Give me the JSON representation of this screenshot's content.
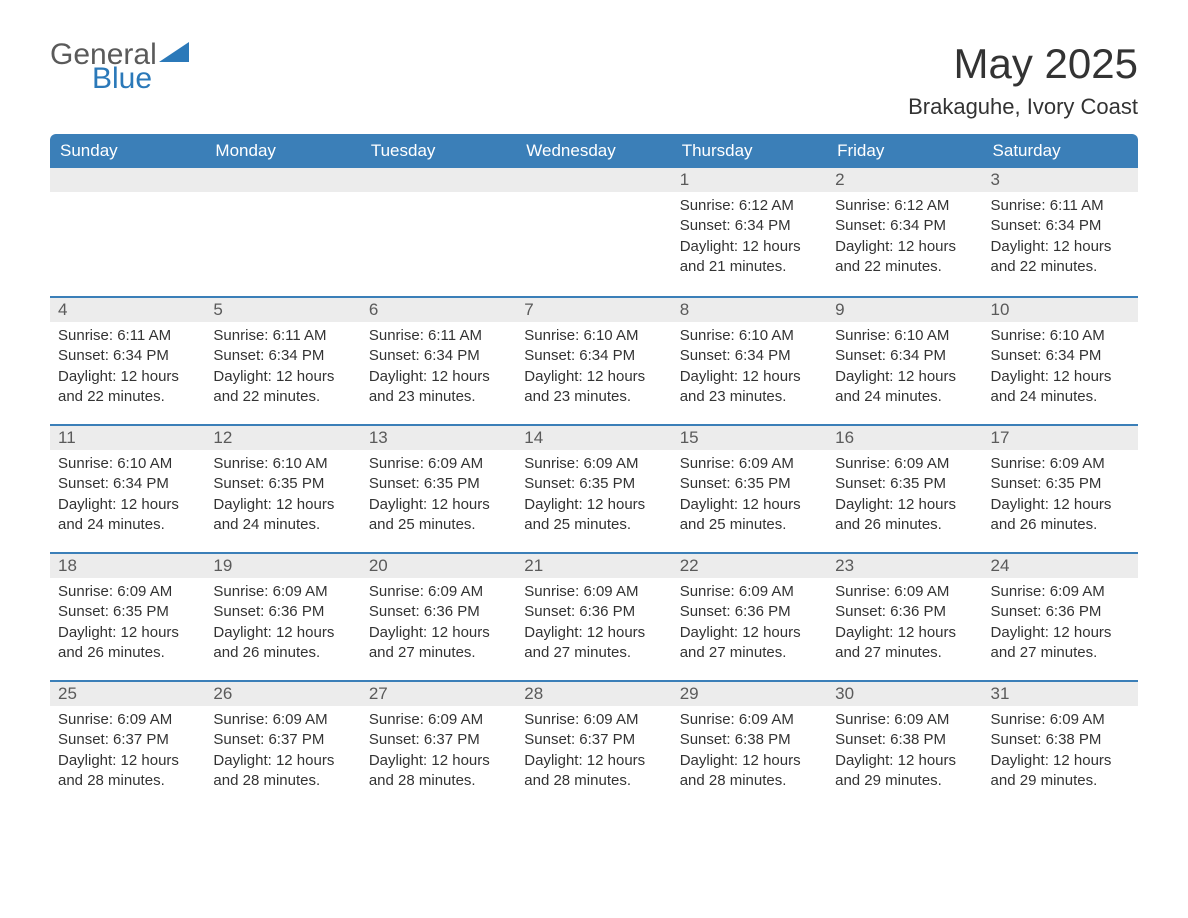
{
  "logo": {
    "word1": "General",
    "word2": "Blue"
  },
  "title": "May 2025",
  "location": "Brakaguhe, Ivory Coast",
  "colors": {
    "header_bg": "#3b7fb8",
    "header_text": "#ffffff",
    "daynum_bg": "#ececec",
    "daynum_text": "#5a5a5a",
    "body_text": "#333333",
    "accent_blue": "#2b79b9",
    "border_blue": "#3b7fb8"
  },
  "weekdays": [
    "Sunday",
    "Monday",
    "Tuesday",
    "Wednesday",
    "Thursday",
    "Friday",
    "Saturday"
  ],
  "weeks": [
    [
      {
        "n": "",
        "sunrise": "",
        "sunset": "",
        "daylight": ""
      },
      {
        "n": "",
        "sunrise": "",
        "sunset": "",
        "daylight": ""
      },
      {
        "n": "",
        "sunrise": "",
        "sunset": "",
        "daylight": ""
      },
      {
        "n": "",
        "sunrise": "",
        "sunset": "",
        "daylight": ""
      },
      {
        "n": "1",
        "sunrise": "Sunrise: 6:12 AM",
        "sunset": "Sunset: 6:34 PM",
        "daylight": "Daylight: 12 hours and 21 minutes."
      },
      {
        "n": "2",
        "sunrise": "Sunrise: 6:12 AM",
        "sunset": "Sunset: 6:34 PM",
        "daylight": "Daylight: 12 hours and 22 minutes."
      },
      {
        "n": "3",
        "sunrise": "Sunrise: 6:11 AM",
        "sunset": "Sunset: 6:34 PM",
        "daylight": "Daylight: 12 hours and 22 minutes."
      }
    ],
    [
      {
        "n": "4",
        "sunrise": "Sunrise: 6:11 AM",
        "sunset": "Sunset: 6:34 PM",
        "daylight": "Daylight: 12 hours and 22 minutes."
      },
      {
        "n": "5",
        "sunrise": "Sunrise: 6:11 AM",
        "sunset": "Sunset: 6:34 PM",
        "daylight": "Daylight: 12 hours and 22 minutes."
      },
      {
        "n": "6",
        "sunrise": "Sunrise: 6:11 AM",
        "sunset": "Sunset: 6:34 PM",
        "daylight": "Daylight: 12 hours and 23 minutes."
      },
      {
        "n": "7",
        "sunrise": "Sunrise: 6:10 AM",
        "sunset": "Sunset: 6:34 PM",
        "daylight": "Daylight: 12 hours and 23 minutes."
      },
      {
        "n": "8",
        "sunrise": "Sunrise: 6:10 AM",
        "sunset": "Sunset: 6:34 PM",
        "daylight": "Daylight: 12 hours and 23 minutes."
      },
      {
        "n": "9",
        "sunrise": "Sunrise: 6:10 AM",
        "sunset": "Sunset: 6:34 PM",
        "daylight": "Daylight: 12 hours and 24 minutes."
      },
      {
        "n": "10",
        "sunrise": "Sunrise: 6:10 AM",
        "sunset": "Sunset: 6:34 PM",
        "daylight": "Daylight: 12 hours and 24 minutes."
      }
    ],
    [
      {
        "n": "11",
        "sunrise": "Sunrise: 6:10 AM",
        "sunset": "Sunset: 6:34 PM",
        "daylight": "Daylight: 12 hours and 24 minutes."
      },
      {
        "n": "12",
        "sunrise": "Sunrise: 6:10 AM",
        "sunset": "Sunset: 6:35 PM",
        "daylight": "Daylight: 12 hours and 24 minutes."
      },
      {
        "n": "13",
        "sunrise": "Sunrise: 6:09 AM",
        "sunset": "Sunset: 6:35 PM",
        "daylight": "Daylight: 12 hours and 25 minutes."
      },
      {
        "n": "14",
        "sunrise": "Sunrise: 6:09 AM",
        "sunset": "Sunset: 6:35 PM",
        "daylight": "Daylight: 12 hours and 25 minutes."
      },
      {
        "n": "15",
        "sunrise": "Sunrise: 6:09 AM",
        "sunset": "Sunset: 6:35 PM",
        "daylight": "Daylight: 12 hours and 25 minutes."
      },
      {
        "n": "16",
        "sunrise": "Sunrise: 6:09 AM",
        "sunset": "Sunset: 6:35 PM",
        "daylight": "Daylight: 12 hours and 26 minutes."
      },
      {
        "n": "17",
        "sunrise": "Sunrise: 6:09 AM",
        "sunset": "Sunset: 6:35 PM",
        "daylight": "Daylight: 12 hours and 26 minutes."
      }
    ],
    [
      {
        "n": "18",
        "sunrise": "Sunrise: 6:09 AM",
        "sunset": "Sunset: 6:35 PM",
        "daylight": "Daylight: 12 hours and 26 minutes."
      },
      {
        "n": "19",
        "sunrise": "Sunrise: 6:09 AM",
        "sunset": "Sunset: 6:36 PM",
        "daylight": "Daylight: 12 hours and 26 minutes."
      },
      {
        "n": "20",
        "sunrise": "Sunrise: 6:09 AM",
        "sunset": "Sunset: 6:36 PM",
        "daylight": "Daylight: 12 hours and 27 minutes."
      },
      {
        "n": "21",
        "sunrise": "Sunrise: 6:09 AM",
        "sunset": "Sunset: 6:36 PM",
        "daylight": "Daylight: 12 hours and 27 minutes."
      },
      {
        "n": "22",
        "sunrise": "Sunrise: 6:09 AM",
        "sunset": "Sunset: 6:36 PM",
        "daylight": "Daylight: 12 hours and 27 minutes."
      },
      {
        "n": "23",
        "sunrise": "Sunrise: 6:09 AM",
        "sunset": "Sunset: 6:36 PM",
        "daylight": "Daylight: 12 hours and 27 minutes."
      },
      {
        "n": "24",
        "sunrise": "Sunrise: 6:09 AM",
        "sunset": "Sunset: 6:36 PM",
        "daylight": "Daylight: 12 hours and 27 minutes."
      }
    ],
    [
      {
        "n": "25",
        "sunrise": "Sunrise: 6:09 AM",
        "sunset": "Sunset: 6:37 PM",
        "daylight": "Daylight: 12 hours and 28 minutes."
      },
      {
        "n": "26",
        "sunrise": "Sunrise: 6:09 AM",
        "sunset": "Sunset: 6:37 PM",
        "daylight": "Daylight: 12 hours and 28 minutes."
      },
      {
        "n": "27",
        "sunrise": "Sunrise: 6:09 AM",
        "sunset": "Sunset: 6:37 PM",
        "daylight": "Daylight: 12 hours and 28 minutes."
      },
      {
        "n": "28",
        "sunrise": "Sunrise: 6:09 AM",
        "sunset": "Sunset: 6:37 PM",
        "daylight": "Daylight: 12 hours and 28 minutes."
      },
      {
        "n": "29",
        "sunrise": "Sunrise: 6:09 AM",
        "sunset": "Sunset: 6:38 PM",
        "daylight": "Daylight: 12 hours and 28 minutes."
      },
      {
        "n": "30",
        "sunrise": "Sunrise: 6:09 AM",
        "sunset": "Sunset: 6:38 PM",
        "daylight": "Daylight: 12 hours and 29 minutes."
      },
      {
        "n": "31",
        "sunrise": "Sunrise: 6:09 AM",
        "sunset": "Sunset: 6:38 PM",
        "daylight": "Daylight: 12 hours and 29 minutes."
      }
    ]
  ]
}
